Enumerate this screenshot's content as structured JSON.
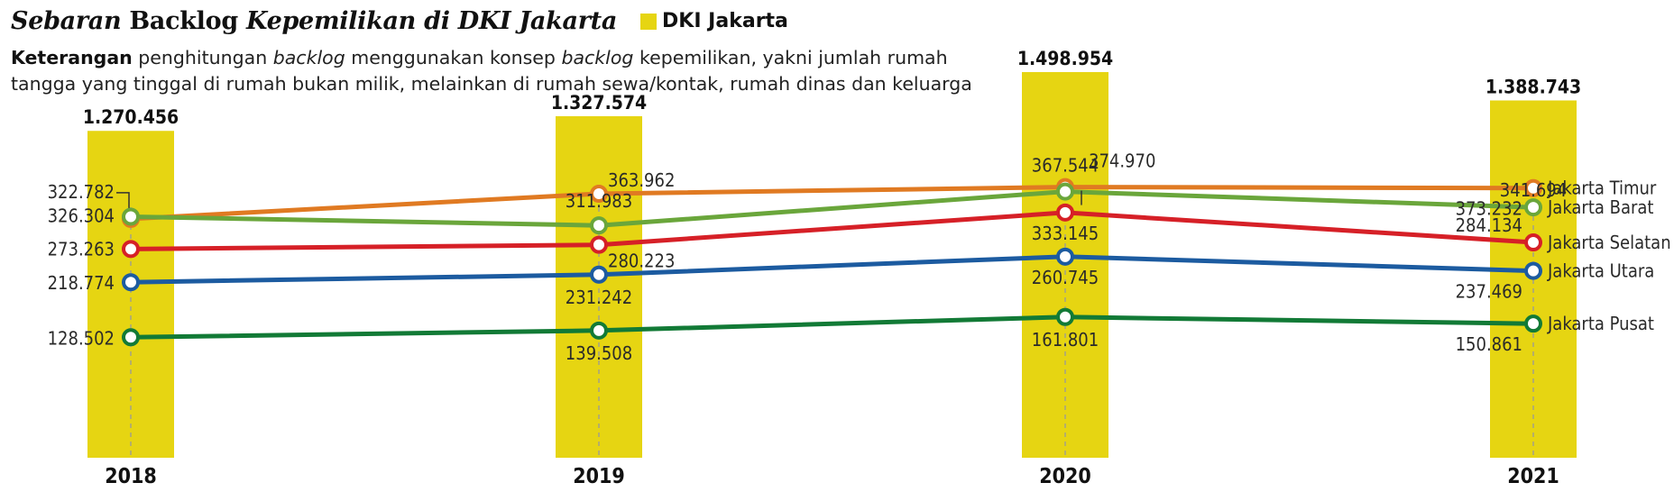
{
  "title": {
    "part1": "Sebaran",
    "part2": " Backlog ",
    "part3": "Kepemilikan di DKI Jakarta"
  },
  "legend": {
    "label": "DKI Jakarta",
    "color": "#e6d512"
  },
  "note": {
    "bold": "Keterangan",
    "t1": " penghitungan ",
    "i1": "backlog",
    "t2": " menggunakan konsep ",
    "i2": "backlog",
    "t3": " kepemilikan, yakni jumlah rumah tangga yang tinggal di rumah bukan milik, melainkan di rumah sewa/kontak, rumah dinas dan keluarga"
  },
  "chart_data": {
    "type": "bar",
    "categories": [
      "2018",
      "2019",
      "2020",
      "2021"
    ],
    "bar_series": {
      "name": "DKI Jakarta",
      "color": "#e6d512",
      "values": [
        1270456,
        1327574,
        1498954,
        1388743
      ],
      "labels": [
        "1.270.456",
        "1.327.574",
        "1.498.954",
        "1.388.743"
      ]
    },
    "line_series": [
      {
        "name": "Jakarta Barat",
        "color": "#6aa63b",
        "values": [
          326304,
          311983,
          367544,
          341694
        ],
        "labels": [
          "326.304",
          "311.983",
          "367.544",
          "341.694"
        ]
      },
      {
        "name": "Jakarta Timur",
        "color": "#e07a22",
        "values": [
          322782,
          363962,
          374970,
          373232
        ],
        "labels": [
          "322.782",
          "363.962",
          "374.970",
          "373.232"
        ]
      },
      {
        "name": "Jakarta Selatan",
        "color": "#d62027",
        "values": [
          273263,
          280223,
          333145,
          284134
        ],
        "labels": [
          "273.263",
          "280.223",
          "333.145",
          "284.134"
        ]
      },
      {
        "name": "Jakarta Utara",
        "color": "#1c5ba0",
        "values": [
          218774,
          231242,
          260745,
          237469
        ],
        "labels": [
          "218.774",
          "231.242",
          "260.745",
          "237.469"
        ]
      },
      {
        "name": "Jakarta Pusat",
        "color": "#127a36",
        "values": [
          128502,
          139508,
          161801,
          150861
        ],
        "labels": [
          "128.502",
          "139.508",
          "161.801",
          "150.861"
        ]
      }
    ]
  }
}
